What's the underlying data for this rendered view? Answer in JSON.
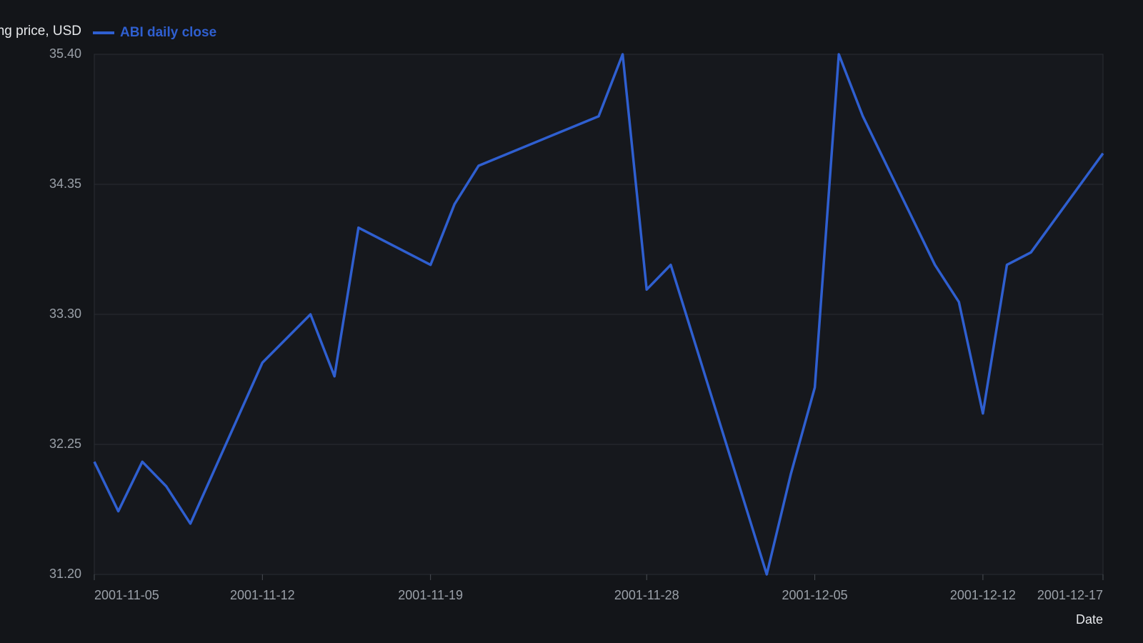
{
  "chart_data": {
    "type": "line",
    "y_label": "Closing price, USD",
    "x_label": "Date",
    "x": [
      "2001-11-05",
      "2001-11-06",
      "2001-11-07",
      "2001-11-08",
      "2001-11-09",
      "2001-11-12",
      "2001-11-14",
      "2001-11-15",
      "2001-11-16",
      "2001-11-19",
      "2001-11-20",
      "2001-11-21",
      "2001-11-26",
      "2001-11-27",
      "2001-11-28",
      "2001-11-29",
      "2001-12-03",
      "2001-12-04",
      "2001-12-05",
      "2001-12-06",
      "2001-12-07",
      "2001-12-10",
      "2001-12-11",
      "2001-12-12",
      "2001-12-13",
      "2001-12-14",
      "2001-12-17"
    ],
    "series": [
      {
        "name": "ABI daily close",
        "color": "#2f5fd0",
        "values": [
          32.11,
          31.71,
          32.11,
          31.91,
          31.61,
          32.91,
          33.3,
          32.8,
          34.0,
          33.7,
          34.19,
          34.5,
          34.9,
          35.4,
          33.5,
          33.7,
          31.2,
          32.01,
          32.71,
          35.4,
          34.9,
          33.7,
          33.4,
          32.5,
          33.7,
          33.8,
          34.6
        ]
      }
    ],
    "xlim": [
      "2001-11-05",
      "2001-12-17"
    ],
    "xticks": [
      "2001-11-05",
      "2001-11-12",
      "2001-11-19",
      "2001-11-28",
      "2001-12-05",
      "2001-12-12",
      "2001-12-17"
    ],
    "ylim": [
      31.2,
      35.4
    ],
    "yticks": [
      {
        "value": 31.2,
        "label": "31.20"
      },
      {
        "value": 32.25,
        "label": "32.25"
      },
      {
        "value": 33.3,
        "label": "33.30"
      },
      {
        "value": 34.35,
        "label": "34.35"
      },
      {
        "value": 35.4,
        "label": "35.40"
      }
    ],
    "grid": true
  }
}
